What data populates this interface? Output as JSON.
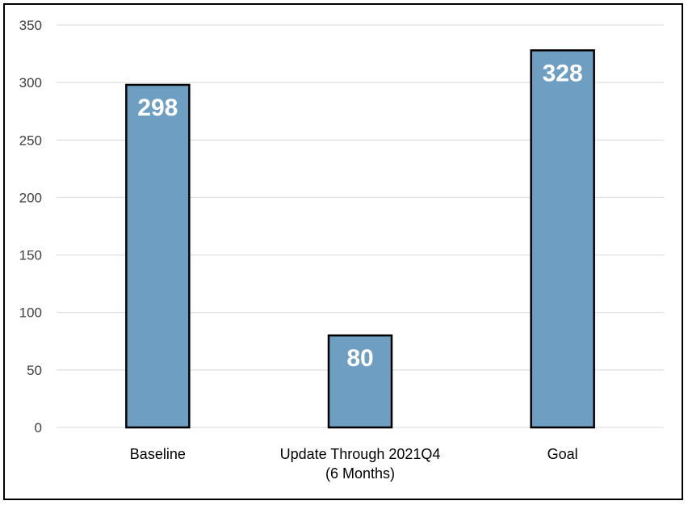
{
  "chart_data": {
    "type": "bar",
    "categories": [
      "Baseline",
      "Update Through 2021Q4|(6 Months)",
      "Goal"
    ],
    "values": [
      298,
      80,
      328
    ],
    "data_labels": [
      "298",
      "80",
      "328"
    ],
    "title": "",
    "xlabel": "",
    "ylabel": "",
    "ylim": [
      0,
      350
    ],
    "yticks": [
      0,
      50,
      100,
      150,
      200,
      250,
      300,
      350
    ],
    "grid": true,
    "legend": "none",
    "bar_color": "#6f9ec3",
    "bar_outline_color": "#000000",
    "data_label_color": "#ffffff"
  }
}
